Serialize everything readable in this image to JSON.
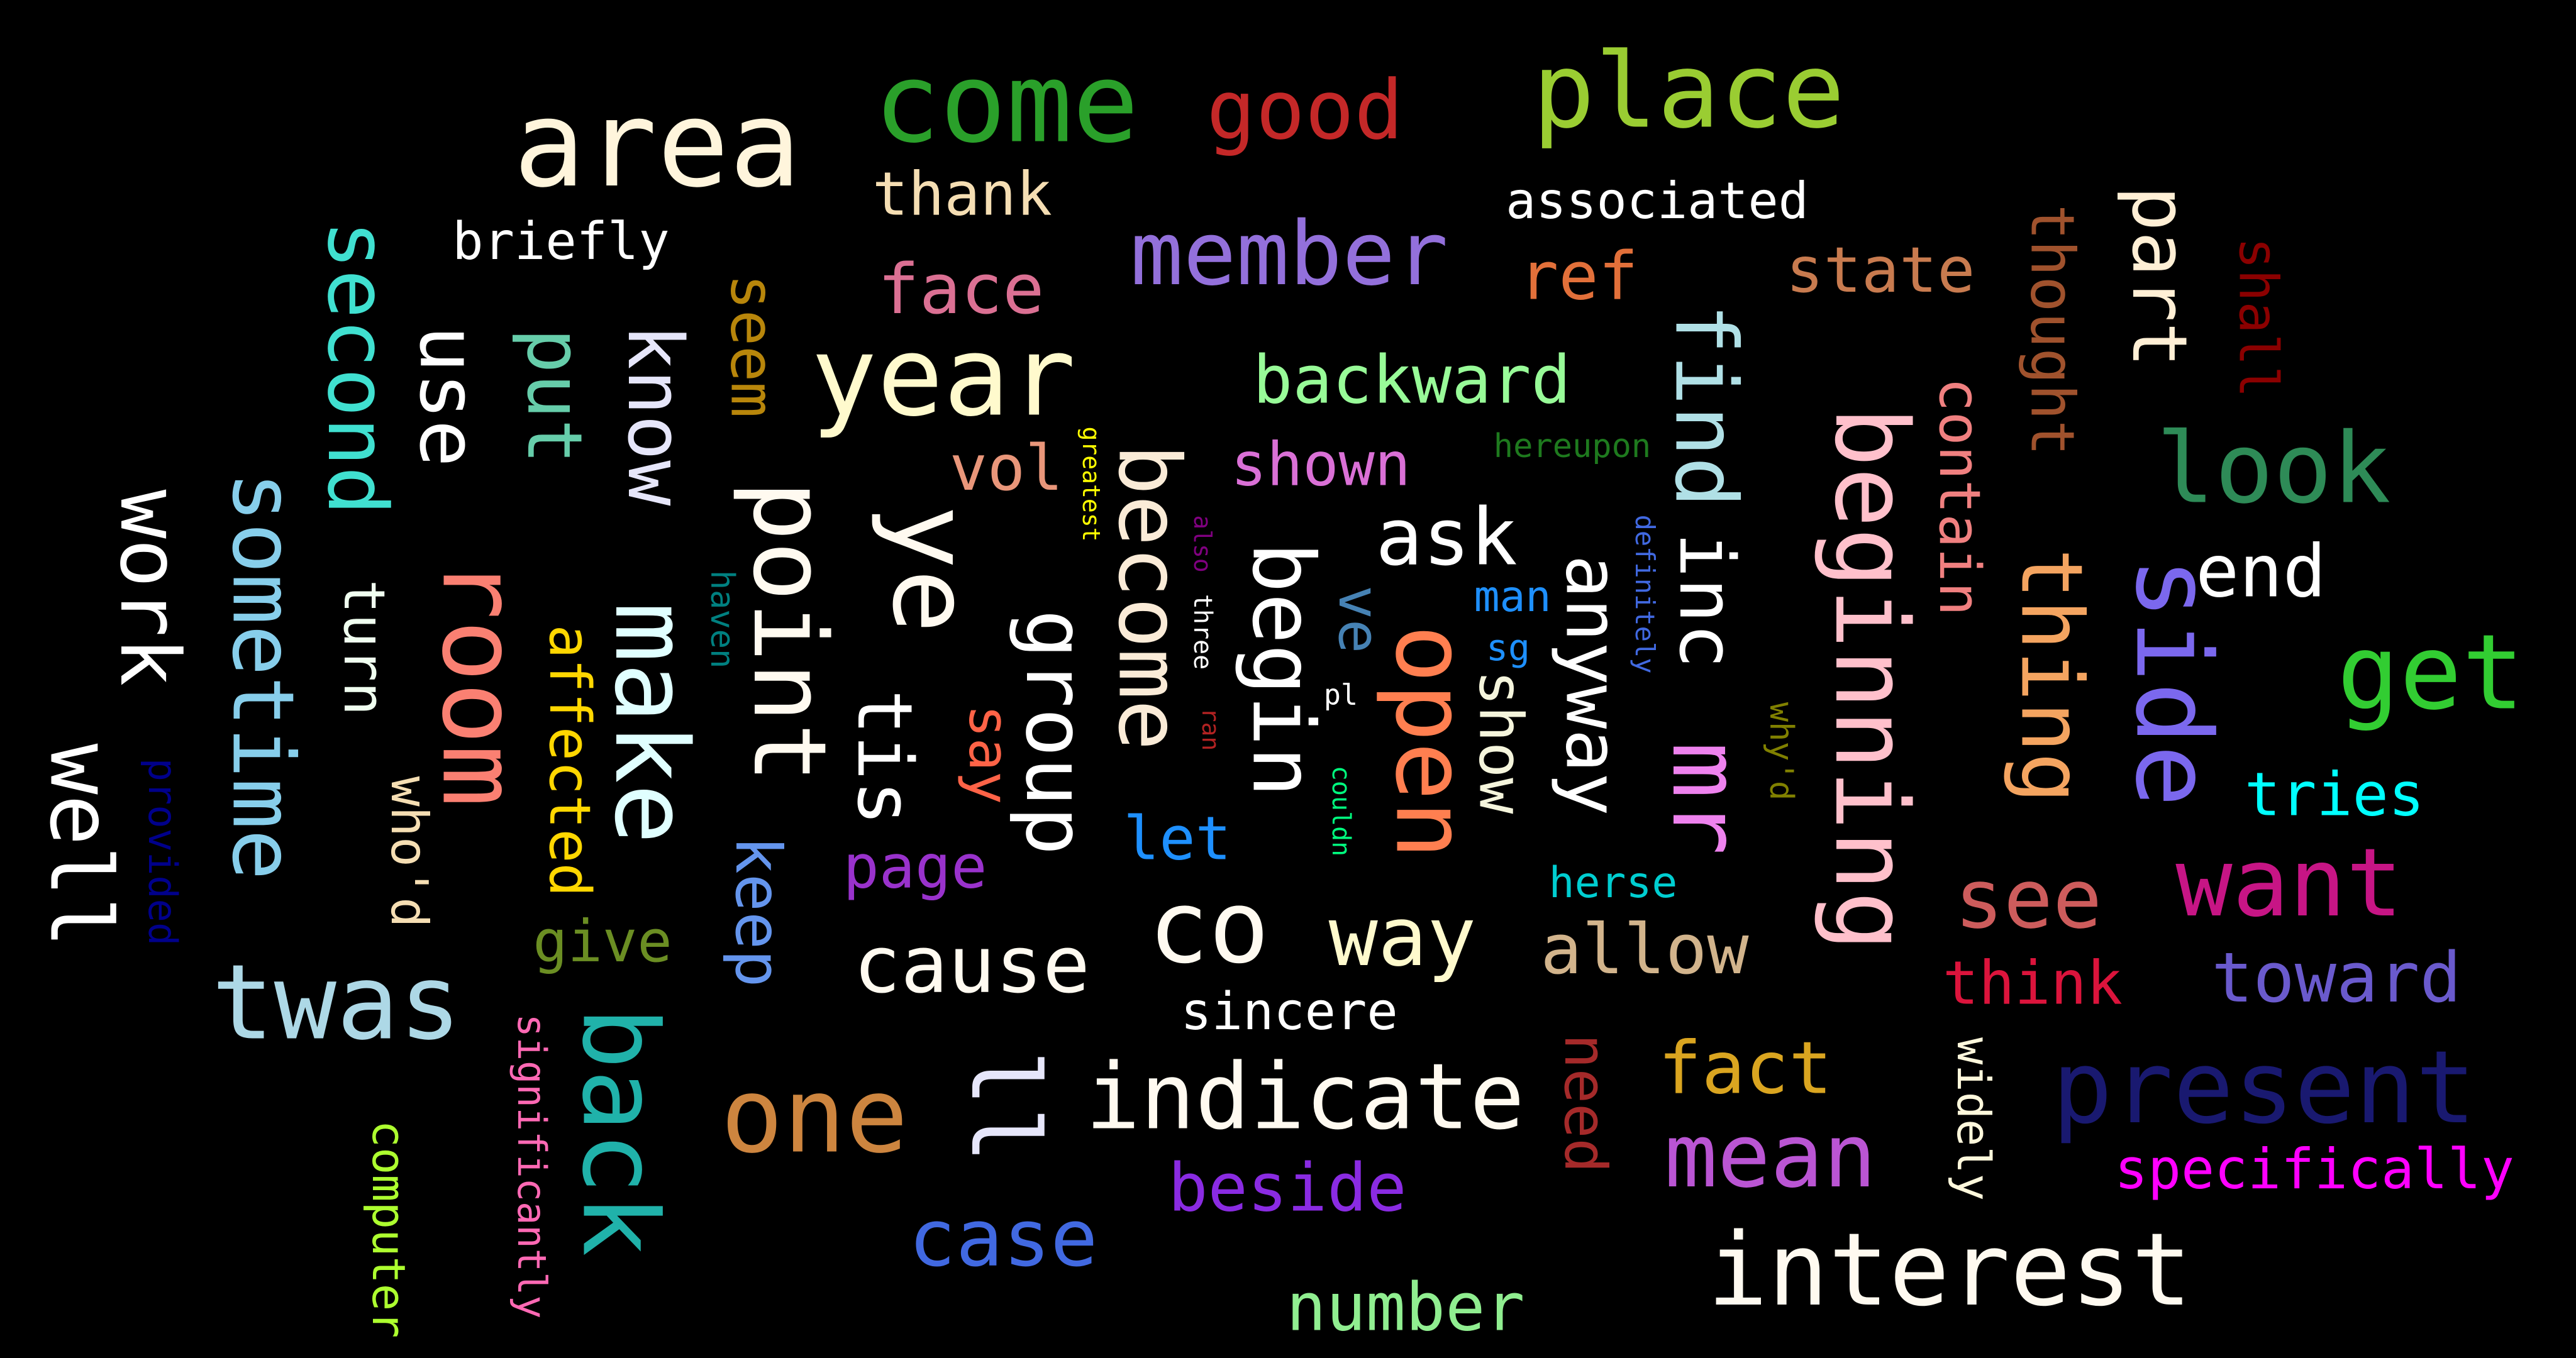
{
  "words": [
    {
      "text": "area",
      "color": "#fff5dc"
    },
    {
      "text": "come",
      "color": "#2aa02a"
    },
    {
      "text": "good",
      "color": "#c42828"
    },
    {
      "text": "place",
      "color": "#9acd32"
    },
    {
      "text": "thank",
      "color": "#f5deb3"
    },
    {
      "text": "associated",
      "color": "#ffffff"
    },
    {
      "text": "briefly",
      "color": "#ffffff"
    },
    {
      "text": "member",
      "color": "#9370db"
    },
    {
      "text": "face",
      "color": "#db7093"
    },
    {
      "text": "ref",
      "color": "#e2703a"
    },
    {
      "text": "state",
      "color": "#c87b4f"
    },
    {
      "text": "year",
      "color": "#fffacd"
    },
    {
      "text": "backward",
      "color": "#98fb98"
    },
    {
      "text": "look",
      "color": "#2e8b57"
    },
    {
      "text": "vol",
      "color": "#e9967a"
    },
    {
      "text": "shown",
      "color": "#da70d6"
    },
    {
      "text": "hereupon",
      "color": "#1e7a1e"
    },
    {
      "text": "end",
      "color": "#ffffff"
    },
    {
      "text": "ask",
      "color": "#ffffff"
    },
    {
      "text": "get",
      "color": "#32cd32"
    },
    {
      "text": "man",
      "color": "#1e90ff"
    },
    {
      "text": "sg",
      "color": "#1e90ff"
    },
    {
      "text": "pl",
      "color": "#ffffff"
    },
    {
      "text": "tries",
      "color": "#00ffff"
    },
    {
      "text": "let",
      "color": "#1e90ff"
    },
    {
      "text": "page",
      "color": "#9932cc"
    },
    {
      "text": "want",
      "color": "#c71585"
    },
    {
      "text": "herse",
      "color": "#00ced1"
    },
    {
      "text": "co",
      "color": "#fffaf0"
    },
    {
      "text": "way",
      "color": "#fffacd"
    },
    {
      "text": "cause",
      "color": "#fffaf0"
    },
    {
      "text": "allow",
      "color": "#d2b48c"
    },
    {
      "text": "see",
      "color": "#cd5c5c"
    },
    {
      "text": "think",
      "color": "#dc143c"
    },
    {
      "text": "toward",
      "color": "#6a5acd"
    },
    {
      "text": "twas",
      "color": "#add8e6"
    },
    {
      "text": "give",
      "color": "#6b8e23"
    },
    {
      "text": "sincere",
      "color": "#ffffff"
    },
    {
      "text": "fact",
      "color": "#daa520"
    },
    {
      "text": "present",
      "color": "#191970"
    },
    {
      "text": "one",
      "color": "#cd853f"
    },
    {
      "text": "indicate",
      "color": "#fffaf0"
    },
    {
      "text": "mean",
      "color": "#ba55d3"
    },
    {
      "text": "specifically",
      "color": "#ff00ff"
    },
    {
      "text": "beside",
      "color": "#8a2be2"
    },
    {
      "text": "case",
      "color": "#4169e1"
    },
    {
      "text": "interest",
      "color": "#fffaf0"
    },
    {
      "text": "number",
      "color": "#90ee90"
    },
    {
      "text": "second",
      "color": "#40e0d0"
    },
    {
      "text": "use",
      "color": "#ffffff"
    },
    {
      "text": "put",
      "color": "#66cdaa"
    },
    {
      "text": "know",
      "color": "#e6e6fa"
    },
    {
      "text": "seem",
      "color": "#b8860b"
    },
    {
      "text": "work",
      "color": "#ffffff"
    },
    {
      "text": "sometime",
      "color": "#87ceeb"
    },
    {
      "text": "turn",
      "color": "#f0fff0"
    },
    {
      "text": "room",
      "color": "#fa8072"
    },
    {
      "text": "make",
      "color": "#e0ffff"
    },
    {
      "text": "point",
      "color": "#fffaf0"
    },
    {
      "text": "greatest",
      "color": "#ffff00"
    },
    {
      "text": "ye",
      "color": "#fffaf0"
    },
    {
      "text": "become",
      "color": "#faebd7"
    },
    {
      "text": "begin",
      "color": "#ffffff"
    },
    {
      "text": "find",
      "color": "#b0e0e6"
    },
    {
      "text": "inc",
      "color": "#ffffff"
    },
    {
      "text": "beginning",
      "color": "#ffc0cb"
    },
    {
      "text": "contain",
      "color": "#f08080"
    },
    {
      "text": "thought",
      "color": "#a0522d"
    },
    {
      "text": "thing",
      "color": "#f4a460"
    },
    {
      "text": "part",
      "color": "#ffefd5"
    },
    {
      "text": "shall",
      "color": "#8b0000"
    },
    {
      "text": "side",
      "color": "#7b68ee"
    },
    {
      "text": "definitely",
      "color": "#4169e1"
    },
    {
      "text": "also",
      "color": "#800080"
    },
    {
      "text": "three",
      "color": "#ffffff"
    },
    {
      "text": "ran",
      "color": "#b22222"
    },
    {
      "text": "ve",
      "color": "#4682b4"
    },
    {
      "text": "couldn",
      "color": "#00ff7f"
    },
    {
      "text": "open",
      "color": "#ff7f50"
    },
    {
      "text": "show",
      "color": "#f5f5dc"
    },
    {
      "text": "anyway",
      "color": "#ffffff"
    },
    {
      "text": "mr",
      "color": "#ee82ee"
    },
    {
      "text": "why'd",
      "color": "#808000"
    },
    {
      "text": "haven",
      "color": "#008080"
    },
    {
      "text": "affected",
      "color": "#ffd700"
    },
    {
      "text": "who'd",
      "color": "#f5deb3"
    },
    {
      "text": "well",
      "color": "#ffffff"
    },
    {
      "text": "provided",
      "color": "#00008b"
    },
    {
      "text": "tis",
      "color": "#ffffff"
    },
    {
      "text": "keep",
      "color": "#6495ed"
    },
    {
      "text": "say",
      "color": "#ff6347"
    },
    {
      "text": "group",
      "color": "#ffffff"
    },
    {
      "text": "back",
      "color": "#20b2aa"
    },
    {
      "text": "significantly",
      "color": "#ff69b4"
    },
    {
      "text": "computer",
      "color": "#adff2f"
    },
    {
      "text": "ll",
      "color": "#e6e6fa"
    },
    {
      "text": "need",
      "color": "#a52a2a"
    },
    {
      "text": "widely",
      "color": "#fff8dc"
    }
  ]
}
